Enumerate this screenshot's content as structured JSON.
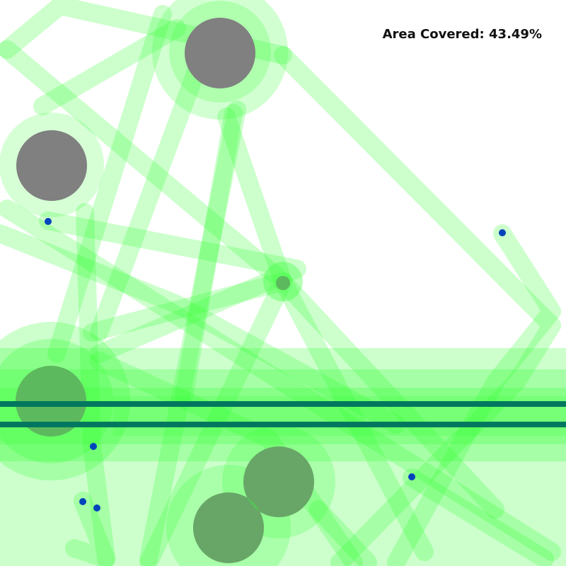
{
  "hud": {
    "area_label": "Area Covered:",
    "area_value": "43.49%"
  },
  "colors": {
    "background": "#ffffff",
    "coverage": "#33ff33",
    "obstacle": "#808080",
    "agent": "#0044bb",
    "track": "#00775e"
  }
}
